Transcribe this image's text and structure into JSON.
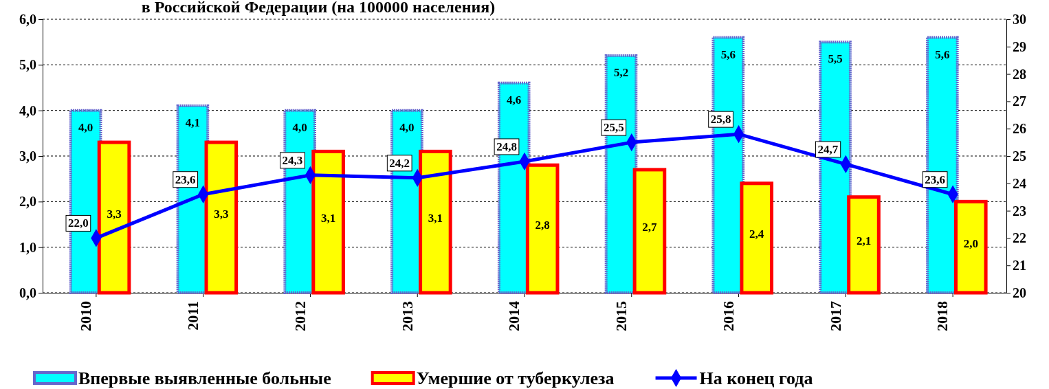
{
  "chart_data": {
    "type": "bar",
    "title": "в Российской Федерации (на 100000 населения)",
    "categories": [
      "2010",
      "2011",
      "2012",
      "2013",
      "2014",
      "2015",
      "2016",
      "2017",
      "2018"
    ],
    "series": [
      {
        "name": "Впервые выявленные больные",
        "color": "#00ffff",
        "values": [
          4.0,
          4.1,
          4.0,
          4.0,
          4.6,
          5.2,
          5.6,
          5.5,
          5.6
        ],
        "value_labels": [
          "4,0",
          "4,1",
          "4,0",
          "4,0",
          "4,6",
          "5,2",
          "5,6",
          "5,5",
          "5,6"
        ]
      },
      {
        "name": "Умершие от туберкулеза",
        "color": "#ffff00",
        "values": [
          3.3,
          3.3,
          3.1,
          3.1,
          2.8,
          2.7,
          2.4,
          2.1,
          2.0
        ],
        "value_labels": [
          "3,3",
          "3,3",
          "3,1",
          "3,1",
          "2,8",
          "2,7",
          "2,4",
          "2,1",
          "2,0"
        ]
      },
      {
        "name": "На конец года",
        "type": "line",
        "axis": "y2",
        "color": "#0000ff",
        "marker": "diamond",
        "values": [
          22.0,
          23.6,
          24.3,
          24.2,
          24.8,
          25.5,
          25.8,
          24.7,
          23.6
        ],
        "value_labels": [
          "22,0",
          "23,6",
          "24,3",
          "24,2",
          "24,8",
          "25,5",
          "25,8",
          "24,7",
          "23,6"
        ]
      }
    ],
    "ylim": [
      0,
      6
    ],
    "yticks": [
      {
        "value": 0,
        "label": "0,0"
      },
      {
        "value": 1,
        "label": "1,0"
      },
      {
        "value": 2,
        "label": "2,0"
      },
      {
        "value": 3,
        "label": "3,0"
      },
      {
        "value": 4,
        "label": "4,0"
      },
      {
        "value": 5,
        "label": "5,0"
      },
      {
        "value": 6,
        "label": "6,0"
      }
    ],
    "y2lim": [
      20,
      30
    ],
    "y2ticks": [
      20,
      21,
      22,
      23,
      24,
      25,
      26,
      27,
      28,
      29,
      30
    ],
    "grid": "y",
    "legend": "bottom"
  }
}
